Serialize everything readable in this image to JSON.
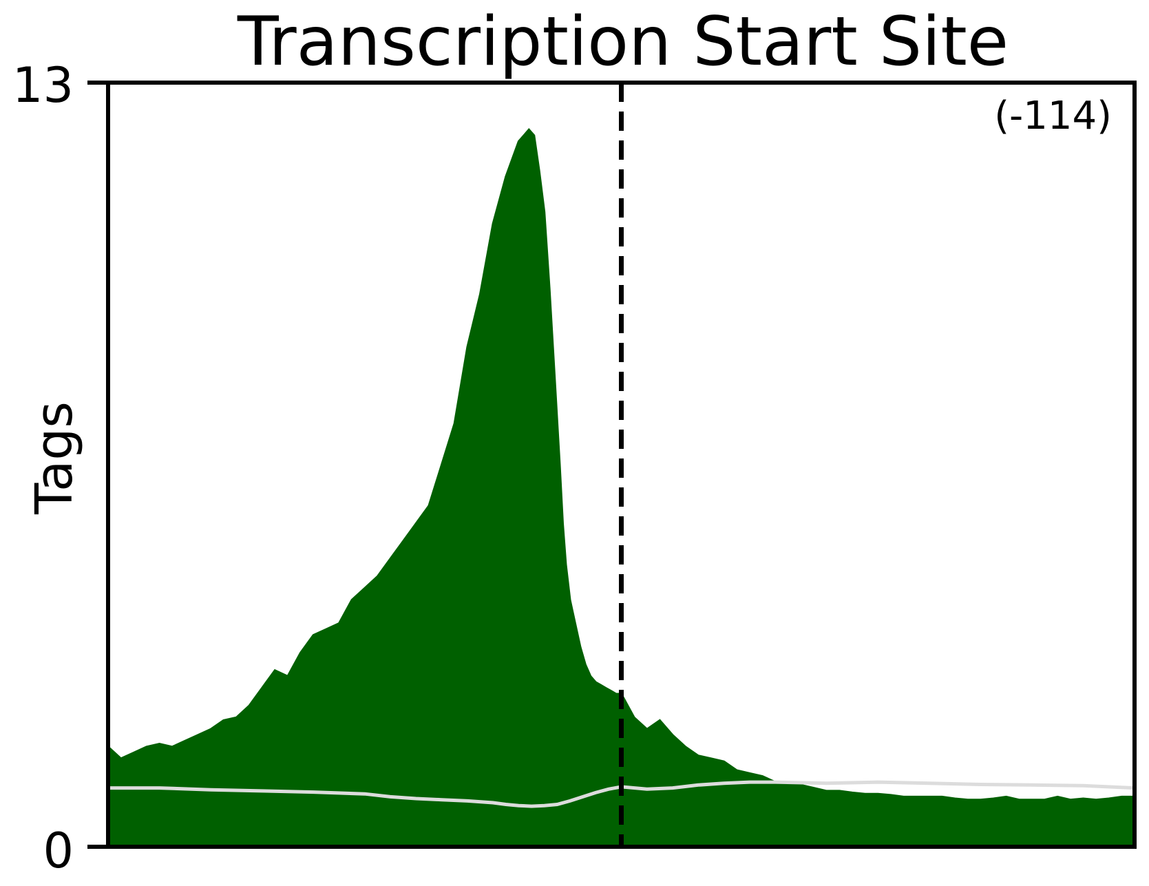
{
  "chart_data": {
    "type": "area",
    "title": "Transcription Start Site",
    "ylabel": "Tags",
    "xlabel": "",
    "ylim": [
      0,
      13
    ],
    "xlim": [
      -1000,
      1000
    ],
    "yticks": [
      "0",
      "13"
    ],
    "annotation": "(-114)",
    "reference_line_x": 0,
    "colors": {
      "fill": "#006000",
      "background_line": "#dcdcdc",
      "axes": "#000000"
    },
    "series": [
      {
        "role": "signal",
        "x": [
          -1000,
          -975,
          -950,
          -925,
          -900,
          -875,
          -850,
          -825,
          -800,
          -775,
          -750,
          -725,
          -700,
          -675,
          -650,
          -625,
          -600,
          -575,
          -550,
          -525,
          -500,
          -475,
          -450,
          -425,
          -400,
          -375,
          -350,
          -325,
          -300,
          -275,
          -250,
          -225,
          -200,
          -190,
          -180,
          -170,
          -160,
          -150,
          -140,
          -130,
          -120,
          -114,
          -108,
          -100,
          -90,
          -80,
          -70,
          -60,
          -50,
          -40,
          -30,
          -20,
          -10,
          0,
          25,
          50,
          75,
          100,
          125,
          150,
          175,
          200,
          225,
          250,
          275,
          300,
          325,
          350,
          375,
          400,
          425,
          450,
          475,
          500,
          525,
          550,
          575,
          600,
          625,
          650,
          675,
          700,
          725,
          750,
          775,
          800,
          825,
          850,
          875,
          900,
          925,
          950,
          975,
          1000
        ],
        "values": [
          1.7,
          1.5,
          1.6,
          1.7,
          1.75,
          1.7,
          1.8,
          1.9,
          2.0,
          2.15,
          2.2,
          2.4,
          2.7,
          3.0,
          2.9,
          3.3,
          3.6,
          3.7,
          3.8,
          4.2,
          4.4,
          4.6,
          4.9,
          5.2,
          5.5,
          5.8,
          6.5,
          7.2,
          8.5,
          9.4,
          10.6,
          11.4,
          12.0,
          12.1,
          12.2,
          12.1,
          11.5,
          10.8,
          9.5,
          8.0,
          6.5,
          5.5,
          4.8,
          4.2,
          3.8,
          3.4,
          3.1,
          2.9,
          2.8,
          2.75,
          2.7,
          2.65,
          2.6,
          2.6,
          2.2,
          2.0,
          2.15,
          1.9,
          1.7,
          1.55,
          1.5,
          1.45,
          1.3,
          1.25,
          1.2,
          1.1,
          1.1,
          1.05,
          1.0,
          0.95,
          0.95,
          0.92,
          0.9,
          0.9,
          0.88,
          0.85,
          0.85,
          0.85,
          0.85,
          0.82,
          0.8,
          0.8,
          0.82,
          0.85,
          0.8,
          0.8,
          0.8,
          0.85,
          0.8,
          0.82,
          0.8,
          0.82,
          0.85,
          0.85
        ]
      },
      {
        "role": "background",
        "x": [
          -1000,
          -900,
          -800,
          -700,
          -600,
          -500,
          -450,
          -400,
          -350,
          -300,
          -250,
          -225,
          -200,
          -175,
          -150,
          -125,
          -100,
          -75,
          -50,
          -25,
          0,
          50,
          100,
          150,
          200,
          250,
          300,
          400,
          500,
          600,
          700,
          800,
          900,
          1000
        ],
        "values": [
          1.0,
          1.0,
          0.97,
          0.95,
          0.93,
          0.9,
          0.85,
          0.82,
          0.8,
          0.78,
          0.75,
          0.72,
          0.7,
          0.69,
          0.7,
          0.72,
          0.78,
          0.85,
          0.92,
          0.98,
          1.02,
          0.98,
          1.0,
          1.05,
          1.08,
          1.1,
          1.1,
          1.08,
          1.1,
          1.08,
          1.06,
          1.05,
          1.04,
          1.0
        ]
      }
    ]
  }
}
